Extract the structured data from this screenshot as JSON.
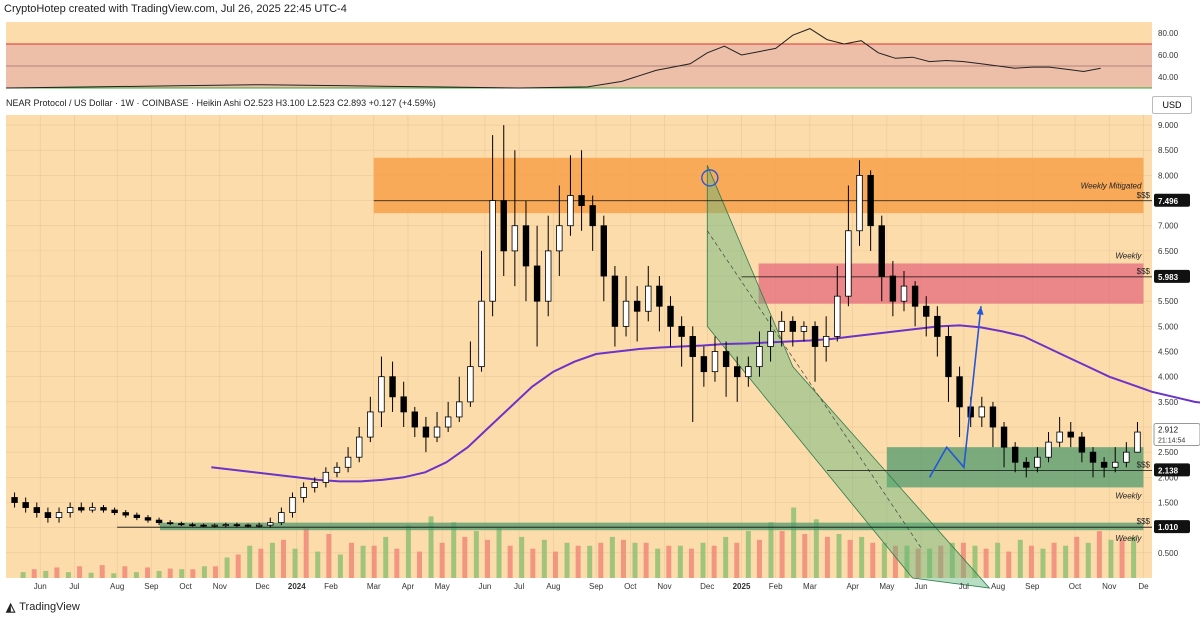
{
  "header": "CryptoHotep created with TradingView.com, Jul 26, 2025 22:45 UTC-4",
  "legend": "NEAR Protocol / US Dollar · 1W · COINBASE · Heikin Ashi  O2.523  H3.100  L2.523  C2.893  +0.127 (+4.59%)",
  "currency": "USD",
  "footer": "TradingView",
  "colors": {
    "bg": "#fddcab",
    "up": "#ffffff",
    "down": "#000000",
    "ma": "#6b33c8",
    "orange_zone": "#f7a14a",
    "red_zone": "#e46a7d",
    "green_zone": "#4f9a6d",
    "vol_up": "#8fbf73",
    "vol_down": "#f08a7a",
    "arrow": "#2456d8"
  },
  "chart_data": [
    {
      "type": "line",
      "name": "oscillator",
      "ylim": [
        30,
        90
      ],
      "tick_labels": [
        "80.00",
        "60.00",
        "40.00"
      ],
      "levels": [
        70,
        50,
        30
      ],
      "x": [
        0,
        10,
        20,
        30,
        40,
        50,
        60,
        68,
        72,
        76,
        80,
        82,
        84,
        86,
        88,
        90,
        92,
        94,
        96,
        98,
        100,
        102,
        104,
        106,
        108,
        110,
        112,
        114,
        116,
        118,
        120,
        122,
        124,
        126,
        128
      ],
      "values": [
        30,
        31,
        32,
        33,
        32,
        31,
        30,
        31,
        36,
        46,
        52,
        62,
        68,
        60,
        63,
        66,
        78,
        84,
        74,
        70,
        73,
        62,
        57,
        58,
        54,
        55,
        54,
        52,
        50,
        48,
        49,
        49,
        47,
        45,
        48
      ]
    },
    {
      "type": "candlestick",
      "name": "NEAR Protocol / US Dollar · 1W · COINBASE · Heikin Ashi",
      "ylim": [
        0,
        9.2
      ],
      "y_ticks": [
        0.5,
        1.0,
        1.5,
        2.0,
        2.5,
        3.0,
        3.5,
        4.0,
        4.5,
        5.0,
        5.5,
        6.0,
        6.5,
        7.0,
        7.5,
        8.0,
        8.5,
        9.0
      ],
      "y_tick_labels": [
        "0.500",
        "1.000",
        "1.500",
        "2.000",
        "2.500",
        "3.000",
        "3.500",
        "4.000",
        "4.500",
        "5.000",
        "5.500",
        "6.000",
        "6.500",
        "7.000",
        "7.500",
        "8.000",
        "8.500",
        "9.000"
      ],
      "x_labels": [
        "Jun",
        "Jul",
        "Aug",
        "Sep",
        "Oct",
        "Nov",
        "Dec",
        "2024",
        "Feb",
        "Mar",
        "Apr",
        "May",
        "Jun",
        "Jul",
        "Aug",
        "Sep",
        "Oct",
        "Nov",
        "Dec",
        "2025",
        "Feb",
        "Mar",
        "Apr",
        "May",
        "Jun",
        "Jul",
        "Aug",
        "Sep",
        "Oct",
        "Nov",
        "De"
      ],
      "x_label_positions": [
        4,
        8,
        13,
        17,
        21,
        25,
        30,
        34,
        38,
        43,
        47,
        51,
        56,
        60,
        64,
        69,
        73,
        77,
        82,
        86,
        90,
        94,
        99,
        103,
        107,
        112,
        116,
        120,
        125,
        129,
        133
      ],
      "candles": [
        [
          1.6,
          1.5,
          1.7,
          1.4
        ],
        [
          1.5,
          1.4,
          1.6,
          1.3
        ],
        [
          1.4,
          1.3,
          1.5,
          1.2
        ],
        [
          1.3,
          1.2,
          1.4,
          1.1
        ],
        [
          1.2,
          1.3,
          1.4,
          1.1
        ],
        [
          1.3,
          1.4,
          1.5,
          1.2
        ],
        [
          1.4,
          1.35,
          1.5,
          1.3
        ],
        [
          1.35,
          1.4,
          1.5,
          1.3
        ],
        [
          1.4,
          1.35,
          1.45,
          1.3
        ],
        [
          1.35,
          1.3,
          1.4,
          1.25
        ],
        [
          1.3,
          1.25,
          1.35,
          1.2
        ],
        [
          1.25,
          1.2,
          1.3,
          1.15
        ],
        [
          1.2,
          1.15,
          1.25,
          1.1
        ],
        [
          1.15,
          1.1,
          1.2,
          1.05
        ],
        [
          1.1,
          1.08,
          1.15,
          1.05
        ],
        [
          1.08,
          1.06,
          1.12,
          1.03
        ],
        [
          1.06,
          1.05,
          1.1,
          1.02
        ],
        [
          1.05,
          1.04,
          1.08,
          1.01
        ],
        [
          1.04,
          1.05,
          1.08,
          1.0
        ],
        [
          1.05,
          1.06,
          1.1,
          1.0
        ],
        [
          1.06,
          1.05,
          1.1,
          1.0
        ],
        [
          1.05,
          1.04,
          1.08,
          1.0
        ],
        [
          1.04,
          1.05,
          1.1,
          1.0
        ],
        [
          1.05,
          1.1,
          1.2,
          1.0
        ],
        [
          1.1,
          1.3,
          1.4,
          1.05
        ],
        [
          1.3,
          1.6,
          1.7,
          1.2
        ],
        [
          1.6,
          1.8,
          1.9,
          1.5
        ],
        [
          1.8,
          1.9,
          2.0,
          1.7
        ],
        [
          1.9,
          2.1,
          2.2,
          1.8
        ],
        [
          2.1,
          2.2,
          2.3,
          2.0
        ],
        [
          2.2,
          2.4,
          2.6,
          2.1
        ],
        [
          2.4,
          2.8,
          3.0,
          2.3
        ],
        [
          2.8,
          3.3,
          3.6,
          2.7
        ],
        [
          3.3,
          4.0,
          4.4,
          3.0
        ],
        [
          4.0,
          3.6,
          4.3,
          3.3
        ],
        [
          3.6,
          3.3,
          3.9,
          3.0
        ],
        [
          3.3,
          3.0,
          3.4,
          2.8
        ],
        [
          3.0,
          2.8,
          3.2,
          2.5
        ],
        [
          2.8,
          3.0,
          3.3,
          2.7
        ],
        [
          3.0,
          3.2,
          3.5,
          2.9
        ],
        [
          3.2,
          3.5,
          4.0,
          3.1
        ],
        [
          3.5,
          4.2,
          4.7,
          3.4
        ],
        [
          4.2,
          5.5,
          6.5,
          4.1
        ],
        [
          5.5,
          7.5,
          8.8,
          5.2
        ],
        [
          7.5,
          6.5,
          9.0,
          6.0
        ],
        [
          6.5,
          7.0,
          8.5,
          5.8
        ],
        [
          7.0,
          6.2,
          7.5,
          5.5
        ],
        [
          6.2,
          5.5,
          7.0,
          4.6
        ],
        [
          5.5,
          6.5,
          7.2,
          5.2
        ],
        [
          6.5,
          7.0,
          7.8,
          6.0
        ],
        [
          7.0,
          7.6,
          8.4,
          6.8
        ],
        [
          7.6,
          7.4,
          8.5,
          6.9
        ],
        [
          7.4,
          7.0,
          7.6,
          6.5
        ],
        [
          7.0,
          6.0,
          7.2,
          5.5
        ],
        [
          6.0,
          5.0,
          6.2,
          4.6
        ],
        [
          5.0,
          5.5,
          6.0,
          4.8
        ],
        [
          5.5,
          5.3,
          5.8,
          4.7
        ],
        [
          5.3,
          5.8,
          6.2,
          5.1
        ],
        [
          5.8,
          5.4,
          6.0,
          4.9
        ],
        [
          5.4,
          5.0,
          5.6,
          4.6
        ],
        [
          5.0,
          4.8,
          5.2,
          4.2
        ],
        [
          4.8,
          4.4,
          5.0,
          3.1
        ],
        [
          4.4,
          4.1,
          4.6,
          3.8
        ],
        [
          4.1,
          4.5,
          4.8,
          3.9
        ],
        [
          4.5,
          4.2,
          4.7,
          3.6
        ],
        [
          4.2,
          4.0,
          4.4,
          3.5
        ],
        [
          4.0,
          4.2,
          4.4,
          3.8
        ],
        [
          4.2,
          4.6,
          4.9,
          4.0
        ],
        [
          4.6,
          4.9,
          5.2,
          4.3
        ],
        [
          4.9,
          5.1,
          5.3,
          4.6
        ],
        [
          5.1,
          4.9,
          5.2,
          4.6
        ],
        [
          4.9,
          5.0,
          5.1,
          4.7
        ],
        [
          5.0,
          4.6,
          5.1,
          3.9
        ],
        [
          4.6,
          4.8,
          5.2,
          4.3
        ],
        [
          4.8,
          5.6,
          6.2,
          4.7
        ],
        [
          5.6,
          6.9,
          7.8,
          5.4
        ],
        [
          6.9,
          8.0,
          8.3,
          6.6
        ],
        [
          8.0,
          7.0,
          8.1,
          6.5
        ],
        [
          7.0,
          6.0,
          7.2,
          5.5
        ],
        [
          6.0,
          5.5,
          6.3,
          5.2
        ],
        [
          5.5,
          5.8,
          6.1,
          5.3
        ],
        [
          5.8,
          5.4,
          5.9,
          5.0
        ],
        [
          5.4,
          5.2,
          5.6,
          4.8
        ],
        [
          5.2,
          4.8,
          5.4,
          4.4
        ],
        [
          4.8,
          4.0,
          5.0,
          3.5
        ],
        [
          4.0,
          3.4,
          4.2,
          2.8
        ],
        [
          3.4,
          3.2,
          3.6,
          3.0
        ],
        [
          3.2,
          3.4,
          3.6,
          3.0
        ],
        [
          3.4,
          3.0,
          3.5,
          2.6
        ],
        [
          3.0,
          2.6,
          3.1,
          2.2
        ],
        [
          2.6,
          2.3,
          2.7,
          2.1
        ],
        [
          2.3,
          2.2,
          2.4,
          2.0
        ],
        [
          2.2,
          2.4,
          2.6,
          2.1
        ],
        [
          2.4,
          2.7,
          2.9,
          2.3
        ],
        [
          2.7,
          2.9,
          3.2,
          2.6
        ],
        [
          2.9,
          2.8,
          3.1,
          2.6
        ],
        [
          2.8,
          2.5,
          2.9,
          2.3
        ],
        [
          2.5,
          2.3,
          2.6,
          2.0
        ],
        [
          2.3,
          2.2,
          2.4,
          2.0
        ],
        [
          2.2,
          2.3,
          2.6,
          2.1
        ],
        [
          2.3,
          2.5,
          2.7,
          2.2
        ],
        [
          2.5,
          2.9,
          3.1,
          2.5
        ]
      ],
      "ma_line": [
        2.2,
        2.15,
        2.1,
        2.05,
        2.0,
        1.95,
        1.92,
        1.92,
        1.95,
        2.0,
        2.1,
        2.3,
        2.6,
        3.0,
        3.4,
        3.8,
        4.1,
        4.3,
        4.45,
        4.5,
        4.55,
        4.58,
        4.6,
        4.62,
        4.65,
        4.66,
        4.68,
        4.7,
        4.72,
        4.75,
        4.8,
        4.85,
        4.9,
        4.95,
        5.0,
        5.02,
        4.98,
        4.9,
        4.8,
        4.6,
        4.4,
        4.2,
        4.0,
        3.85,
        3.7,
        3.6,
        3.5,
        3.45
      ],
      "volume_up": [
        0.1,
        0.12,
        0.1,
        0.09,
        0.08,
        0.1,
        0.12,
        0.15,
        0.2,
        0.35,
        0.55,
        0.6,
        0.5,
        0.45,
        0.4,
        0.55,
        0.7,
        0.9,
        1.05,
        0.95,
        0.8,
        0.85,
        0.7,
        0.65,
        0.6,
        0.55,
        0.7,
        0.6,
        0.5,
        0.55,
        0.6,
        0.7,
        0.8,
        0.95,
        1.2,
        1.0,
        0.75,
        0.7,
        0.6,
        0.55,
        0.5,
        0.6,
        0.55,
        0.6,
        0.65,
        0.5,
        0.55,
        0.6,
        0.65,
        0.7
      ],
      "volume_down": [
        0.15,
        0.18,
        0.2,
        0.22,
        0.2,
        0.18,
        0.16,
        0.15,
        0.2,
        0.4,
        0.5,
        0.65,
        0.85,
        0.75,
        0.6,
        0.55,
        0.5,
        0.45,
        0.6,
        0.7,
        0.65,
        0.55,
        0.5,
        0.45,
        0.55,
        0.6,
        0.65,
        0.6,
        0.55,
        0.5,
        0.55,
        0.6,
        0.65,
        0.8,
        0.75,
        0.7,
        0.65,
        0.6,
        0.55,
        0.5,
        0.55,
        0.6,
        0.5,
        0.45,
        0.55,
        0.6,
        0.7,
        0.8,
        0.65
      ],
      "zones": [
        {
          "label": "Weekly Mitigated",
          "y_low": 7.25,
          "y_high": 8.35,
          "x_start": 43,
          "x_end": 133
        },
        {
          "label": "Weekly",
          "y_low": 5.45,
          "y_high": 6.25,
          "x_start": 88,
          "x_end": 133
        },
        {
          "label": "Weekly",
          "y_low": 1.8,
          "y_high": 2.6,
          "x_start": 103,
          "x_end": 133
        },
        {
          "label": "Weekly",
          "y_low": 0.95,
          "y_high": 1.1,
          "x_start": 18,
          "x_end": 133
        }
      ],
      "price_markers": [
        {
          "text": "$$$",
          "value": 7.496,
          "label": "7.496"
        },
        {
          "text": "$$$",
          "value": 5.983,
          "label": "5.983"
        },
        {
          "text": "$$$",
          "value": 2.138,
          "label": "2.138"
        },
        {
          "text": "$$$",
          "value": 1.01,
          "label": "1.010"
        }
      ],
      "current_price": {
        "value": 2.912,
        "label": "2.912",
        "time": "21:14:54"
      },
      "projection": [
        [
          108,
          2.0
        ],
        [
          110,
          2.6
        ],
        [
          112,
          2.2
        ],
        [
          114,
          5.4
        ]
      ]
    }
  ]
}
